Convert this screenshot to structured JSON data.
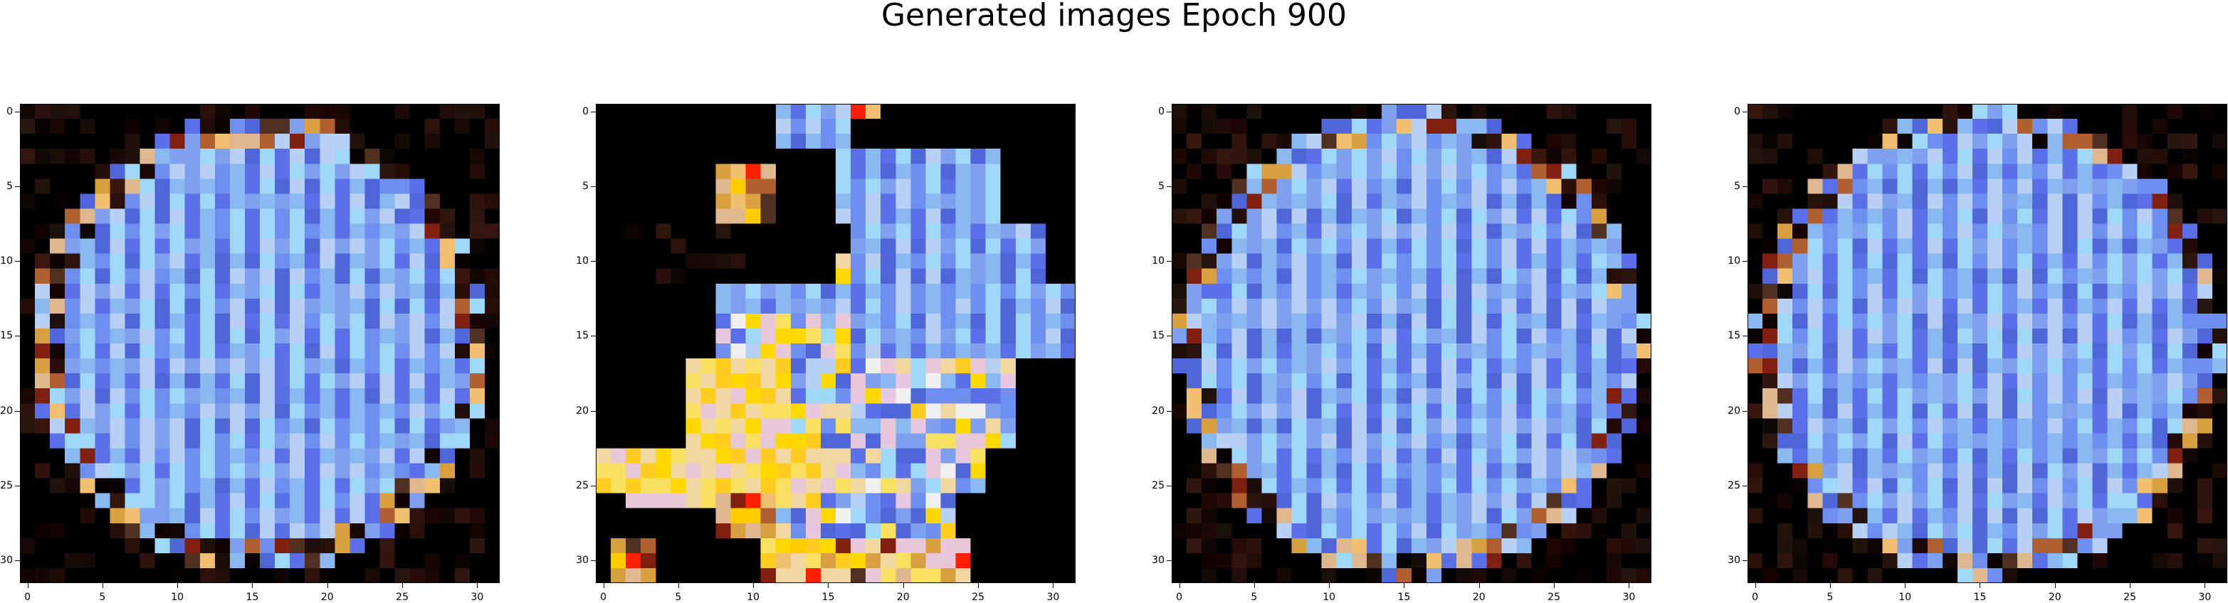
{
  "title": "Generated images Epoch 900",
  "panels": [
    {
      "name": "generated-image-1",
      "variant": "blob-a",
      "seed": 11
    },
    {
      "name": "generated-image-2",
      "variant": "blob-b",
      "seed": 23
    },
    {
      "name": "generated-image-3",
      "variant": "blob-c",
      "seed": 37
    },
    {
      "name": "generated-image-4",
      "variant": "blob-c",
      "seed": 41
    }
  ],
  "axes": {
    "xticks": [
      0,
      5,
      10,
      15,
      20,
      25,
      30
    ],
    "yticks": [
      0,
      5,
      10,
      15,
      20,
      25,
      30
    ],
    "grid_size": 32
  },
  "colors": {
    "background": "#000000",
    "palette_blue": [
      "#8ab8f0",
      "#6f8ff0",
      "#5a6fe8",
      "#9fd8f8",
      "#7fa0ee",
      "#b8d0f4",
      "#4f66d8"
    ],
    "palette_warm": [
      "#d8a040",
      "#b06030",
      "#f0c070",
      "#802010",
      "#e0b890",
      "#503020"
    ],
    "palette_yellow": [
      "#ffd800",
      "#f8e060",
      "#ffcc20",
      "#f0d8a0",
      "#e8c8d8"
    ]
  }
}
